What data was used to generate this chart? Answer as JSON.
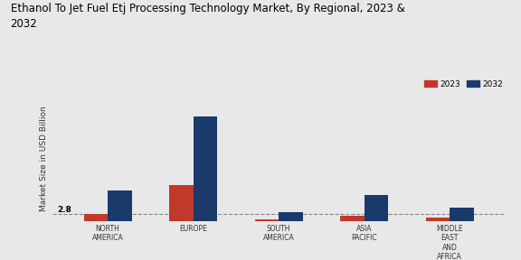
{
  "title": "Ethanol To Jet Fuel Etj Processing Technology Market, By Regional, 2023 &\n2032",
  "ylabel": "Market Size in USD Billion",
  "categories": [
    "NORTH\nAMERICA",
    "EUROPE",
    "SOUTH\nAMERICA",
    "ASIA\nPACIFIC",
    "MIDDLE\nEAST\nAND\nAFRICA"
  ],
  "values_2023": [
    0.15,
    0.72,
    0.04,
    0.1,
    0.06
  ],
  "values_2032": [
    0.62,
    2.1,
    0.18,
    0.52,
    0.27
  ],
  "color_2023": "#c0392b",
  "color_2032": "#1a3a6b",
  "bar_width": 0.28,
  "dashed_line_y": 0.15,
  "annotation_text": "2.8",
  "background_color": "#e8e8e8",
  "legend_labels": [
    "2023",
    "2032"
  ],
  "title_fontsize": 8.5,
  "axis_label_fontsize": 6.5,
  "tick_fontsize": 5.5
}
